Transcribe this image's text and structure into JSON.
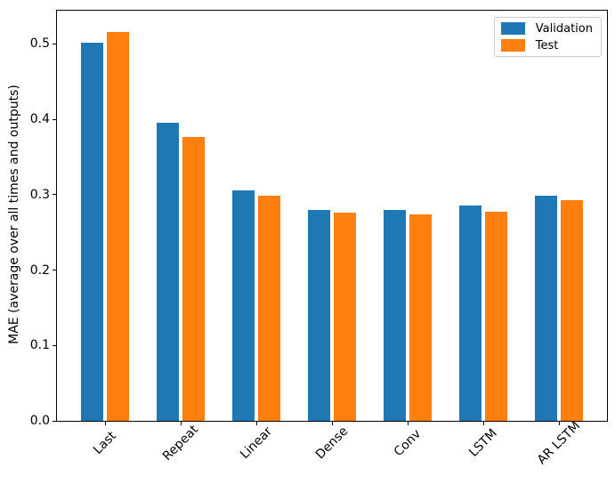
{
  "chart_data": {
    "type": "bar",
    "title": "",
    "xlabel": "",
    "ylabel": "MAE (average over all times and outputs)",
    "categories": [
      "Last",
      "Repeat",
      "Linear",
      "Dense",
      "Conv",
      "LSTM",
      "AR LSTM"
    ],
    "series": [
      {
        "name": "Validation",
        "color": "#1f77b4",
        "values": [
          0.502,
          0.395,
          0.306,
          0.28,
          0.28,
          0.286,
          0.298
        ]
      },
      {
        "name": "Test",
        "color": "#ff7f0e",
        "values": [
          0.516,
          0.377,
          0.298,
          0.276,
          0.274,
          0.277,
          0.293
        ]
      }
    ],
    "yticks": [
      0.0,
      0.1,
      0.2,
      0.3,
      0.4,
      0.5
    ],
    "ytick_labels": [
      "0.0",
      "0.1",
      "0.2",
      "0.3",
      "0.4",
      "0.5"
    ],
    "ylim": [
      0,
      0.544
    ],
    "bar_width_units": 0.3,
    "group_offset_units": 0.17,
    "x_tick_label_rotation_deg": 45,
    "grid": false,
    "legend": {
      "position": "upper-right",
      "entries": [
        "Validation",
        "Test"
      ]
    }
  }
}
